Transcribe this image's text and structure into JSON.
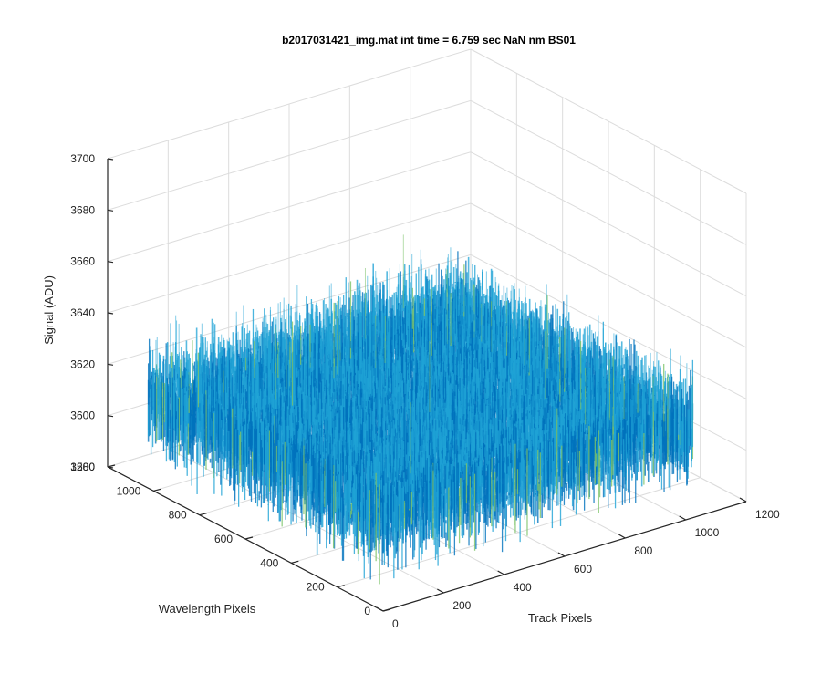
{
  "chart_data": {
    "type": "surface",
    "title": "b2017031421_img.mat int time = 6.759 sec  NaN nm BS01",
    "xlabel": "Track Pixels",
    "ylabel": "Wavelength Pixels",
    "zlabel": "Signal (ADU)",
    "xlim": [
      0,
      1200
    ],
    "ylim": [
      0,
      1200
    ],
    "zlim": [
      3580,
      3700
    ],
    "x_ticks": [
      "0",
      "200",
      "400",
      "600",
      "800",
      "1000",
      "1200"
    ],
    "y_ticks": [
      "0",
      "200",
      "400",
      "600",
      "800",
      "1000",
      "1200"
    ],
    "z_ticks": [
      "3580",
      "3600",
      "3620",
      "3640",
      "3660",
      "3680",
      "3700"
    ],
    "data_extent": {
      "x": [
        1,
        1024
      ],
      "y": [
        1,
        1024
      ]
    },
    "signal_mean": 3615,
    "signal_range": [
      3585,
      3668
    ],
    "grid": true,
    "colormap": "parula",
    "colors": {
      "low": "#0072bd",
      "mid": "#1fa3d6",
      "high": "#7cc46a"
    }
  }
}
